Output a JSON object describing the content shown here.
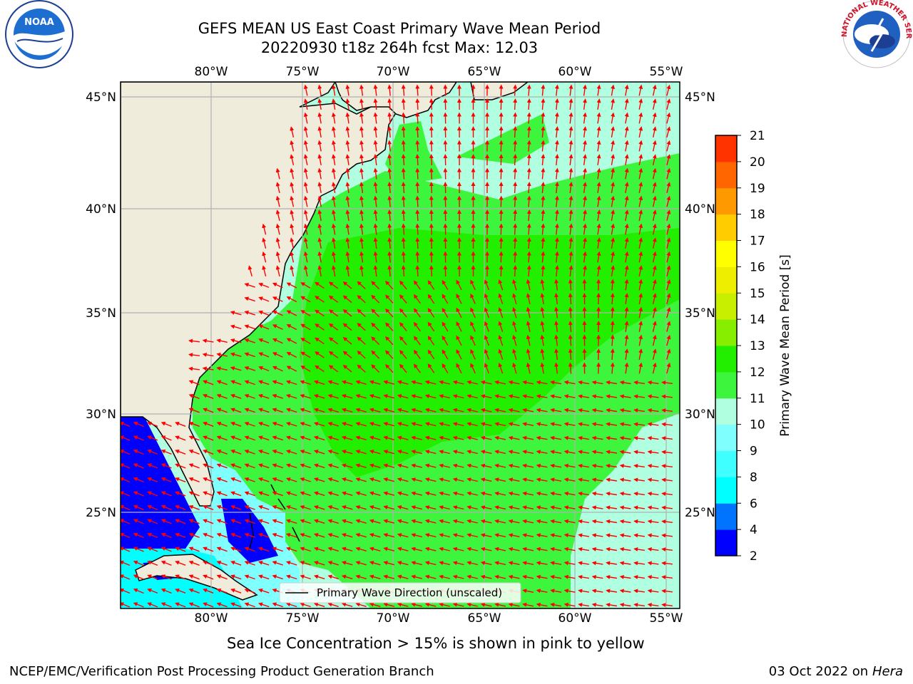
{
  "title": {
    "line1": "GEFS MEAN US East Coast Primary Wave Mean Period",
    "line2": "20220930 t18z 264h fcst   Max: 12.03"
  },
  "map": {
    "lon_labels": [
      "80°W",
      "75°W",
      "70°W",
      "65°W",
      "60°W",
      "55°W"
    ],
    "lat_labels": [
      "45°N",
      "40°N",
      "35°N",
      "30°N",
      "25°N"
    ],
    "legend_label": "Primary Wave Direction (unscaled)",
    "colors": {
      "land": "#efecdc",
      "grid": "#b0b0b0",
      "arrow": "#ff0000"
    }
  },
  "colorbar": {
    "label": "Primary Wave Mean Period [s]",
    "ticks": [
      "2",
      "4",
      "6",
      "8",
      "9",
      "10",
      "11",
      "12",
      "13",
      "14",
      "15",
      "16",
      "17",
      "18",
      "19",
      "20",
      "21"
    ],
    "colors": [
      "#0000ff",
      "#0073ff",
      "#00ffff",
      "#40ffff",
      "#80ffff",
      "#b0ffe0",
      "#3df53d",
      "#22ee00",
      "#88ee00",
      "#c8ee00",
      "#eeee00",
      "#ffff00",
      "#ffcc00",
      "#ff9900",
      "#ff6600",
      "#ff3300",
      "#ff0000"
    ]
  },
  "logos": {
    "left_text": "NOAA",
    "right_text": "NATIONAL WEATHER SERVICE"
  },
  "footer": {
    "note": "Sea Ice Concentration > 15% is shown in pink to yellow",
    "credit": "NCEP/EMC/Verification Post Processing Product Generation Branch",
    "date": "03 Oct 2022 on",
    "machine": "Hera"
  }
}
